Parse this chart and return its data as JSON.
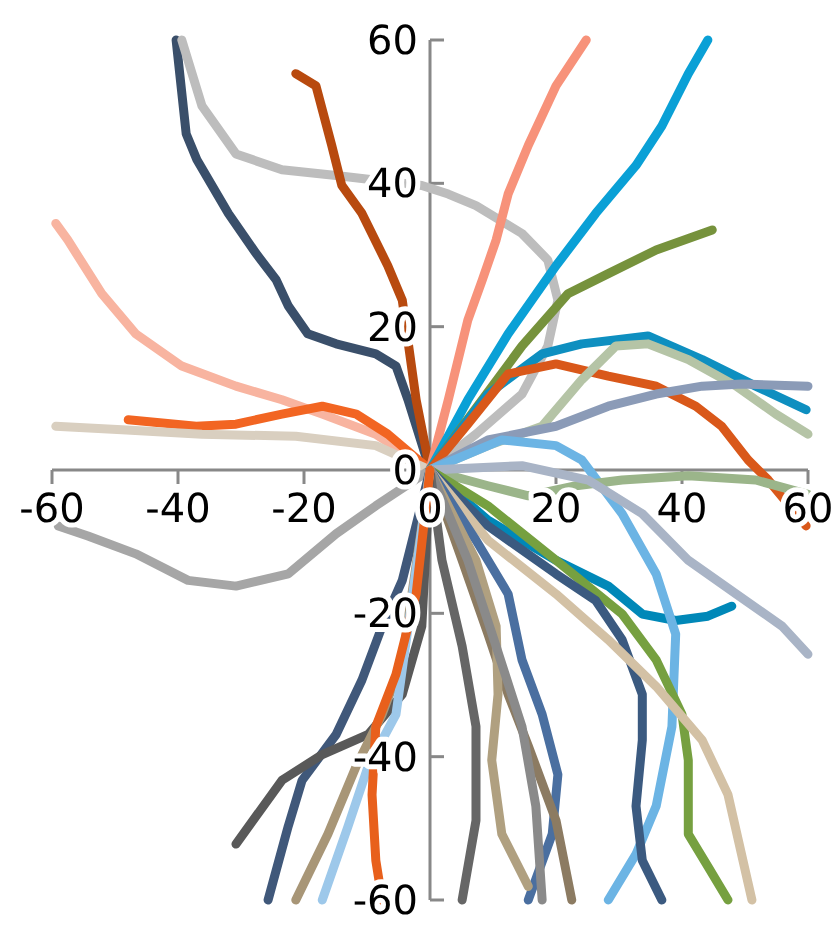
{
  "chart_data": {
    "type": "line",
    "xlim": [
      -60,
      60
    ],
    "ylim": [
      -60,
      60
    ],
    "xticks": [
      -60,
      -40,
      -20,
      0,
      20,
      40,
      60
    ],
    "yticks": [
      -60,
      -40,
      -20,
      0,
      20,
      40,
      60
    ],
    "grid": false,
    "marker": "none",
    "line_style": "solid",
    "series": [
      {
        "color": "#3a4f6a",
        "x": [
          0,
          -3.5,
          -5.4,
          -8.6,
          -14.9,
          -19.4,
          -22.5,
          -24.4,
          -27.6,
          -32,
          -37,
          -38.7,
          -40.3
        ],
        "values": [
          0,
          9.8,
          14.5,
          16.2,
          17.6,
          19,
          22.9,
          26.5,
          30.2,
          35.8,
          43.3,
          46.9,
          60
        ]
      },
      {
        "color": "#bdbdbd",
        "x": [
          0,
          7.3,
          14.6,
          18.7,
          20.3,
          18.7,
          14.6,
          7.3,
          2.9,
          -1.3,
          -14.9,
          -23.5,
          -30.8,
          -36.2,
          -39.4
        ],
        "values": [
          0,
          5,
          10.6,
          17.3,
          23.7,
          29.3,
          33,
          36.9,
          38.5,
          39.7,
          41.1,
          41.9,
          44.1,
          50.8,
          60
        ]
      },
      {
        "color": "#b84a0f",
        "x": [
          0,
          -2.2,
          -4.4,
          -6.7,
          -10.8,
          -14,
          -15.6,
          -18.1,
          -21.3
        ],
        "values": [
          0,
          9.8,
          23.7,
          28.5,
          35.8,
          39.7,
          45.3,
          53.6,
          55.3
        ]
      },
      {
        "color": "#f8b4a0",
        "x": [
          0,
          -8.6,
          -17.1,
          -23.5,
          -30.8,
          -39.4,
          -46.7,
          -52.1,
          -57.5,
          -59.4
        ],
        "values": [
          0,
          5,
          7.8,
          9.8,
          11.7,
          14.5,
          19,
          24.6,
          32.1,
          34.4
        ]
      },
      {
        "color": "#f26522",
        "x": [
          0,
          -6.7,
          -11.7,
          -17.1,
          -23.5,
          -30.8,
          -37.1,
          -47.9
        ],
        "values": [
          0,
          5,
          7.8,
          8.9,
          7.8,
          6.4,
          6.1,
          7
        ]
      },
      {
        "color": "#d9cfc0",
        "x": [
          0,
          -8.6,
          -21.3,
          -36.2,
          -48.9,
          -59.4
        ],
        "values": [
          0,
          3.4,
          4.7,
          5,
          5.6,
          6.1
        ]
      },
      {
        "color": "#a6a6a6",
        "x": [
          0,
          -8.6,
          -14.9,
          -22.5,
          -30.8,
          -38.4,
          -46.7,
          -54.3,
          -59
        ],
        "values": [
          0,
          -5,
          -8.9,
          -14.5,
          -16.2,
          -15.4,
          -11.7,
          -9.2,
          -7.8
        ]
      },
      {
        "color": "#f7927a",
        "x": [
          0,
          2.9,
          6,
          8.3,
          10.5,
          12.4,
          15.6,
          20,
          24.8
        ],
        "values": [
          0,
          9.8,
          20.9,
          26.5,
          32.1,
          38.5,
          45.3,
          53.6,
          60
        ]
      },
      {
        "color": "#0aa0d6",
        "x": [
          0,
          6,
          12.4,
          20,
          26.3,
          32.7,
          36.8,
          41,
          44.1
        ],
        "values": [
          0,
          9.8,
          19,
          28.5,
          35.8,
          42.5,
          48,
          55.3,
          60
        ]
      },
      {
        "color": "#76923c",
        "x": [
          0,
          8.3,
          14.6,
          21.9,
          28.3,
          35.9,
          44.8
        ],
        "values": [
          0,
          9.8,
          17.3,
          24.6,
          27.4,
          30.7,
          33.5
        ]
      },
      {
        "color": "#0e8fc0",
        "x": [
          0,
          9.2,
          17.8,
          24.1,
          34.6,
          43.2,
          51.7,
          59.7
        ],
        "values": [
          0,
          10.6,
          16.2,
          17.6,
          18.7,
          15.4,
          11.7,
          8.4
        ]
      },
      {
        "color": "#0088b8",
        "x": [
          0,
          9.2,
          20,
          28.3,
          33.7,
          39,
          44.1,
          47.9
        ],
        "values": [
          0,
          -7,
          -12.6,
          -16.2,
          -20.1,
          -21,
          -20.4,
          -19
        ]
      },
      {
        "color": "#d9581a",
        "x": [
          0,
          6,
          12.4,
          20,
          28.3,
          35.9,
          42.2,
          46.3,
          50.5,
          53.7,
          59.7
        ],
        "values": [
          0,
          6.4,
          13.4,
          14.8,
          13.1,
          11.7,
          8.9,
          6.1,
          1.4,
          -1.4,
          -7.8
        ]
      },
      {
        "color": "#b5c4a6",
        "x": [
          0,
          9.2,
          17.8,
          24.1,
          29.5,
          34.6,
          41,
          48.6,
          54.9,
          60
        ],
        "values": [
          0,
          3.4,
          6.1,
          12.6,
          17.3,
          17.6,
          15.4,
          11.7,
          7.8,
          5
        ]
      },
      {
        "color": "#8b9bb7",
        "x": [
          0,
          9.2,
          20,
          28.3,
          35.9,
          43.2,
          49.5,
          60
        ],
        "values": [
          0,
          4.2,
          6.1,
          8.9,
          10.6,
          11.7,
          12,
          11.7
        ]
      },
      {
        "color": "#6cb4e4",
        "x": [
          0,
          11.4,
          20,
          24.1,
          30.5,
          35.9,
          39,
          38.4,
          35.9,
          32.7,
          28.3
        ],
        "values": [
          0,
          4.2,
          3.4,
          1.4,
          -6.1,
          -14.5,
          -22.9,
          -35.8,
          -46.9,
          -53.6,
          -60
        ]
      },
      {
        "color": "#9bb58a",
        "x": [
          0,
          9.2,
          15.6,
          23.2,
          30.5,
          41,
          51.7,
          60
        ],
        "values": [
          0,
          -2.2,
          -3.6,
          -2.2,
          -1.4,
          -0.8,
          -1.4,
          -3.4
        ]
      },
      {
        "color": "#a9b4c6",
        "x": [
          0,
          14.6,
          25.1,
          33.7,
          41,
          48.6,
          55.9,
          60
        ],
        "values": [
          0,
          0.6,
          -1.4,
          -6.1,
          -12.6,
          -17.3,
          -21.8,
          -25.7
        ]
      },
      {
        "color": "#76a040",
        "x": [
          0,
          9.2,
          20,
          30.5,
          35.9,
          40,
          41,
          41,
          44.1,
          47.3
        ],
        "values": [
          0,
          -5,
          -12.6,
          -20.1,
          -26.5,
          -34.1,
          -40.5,
          -50.8,
          -55.3,
          -60
        ]
      },
      {
        "color": "#3b5a80",
        "x": [
          0,
          9.2,
          20,
          26.3,
          30.5,
          33.7,
          33.7,
          32.7,
          33.7,
          36.8
        ],
        "values": [
          0,
          -7.8,
          -14.5,
          -18.2,
          -23.7,
          -31.3,
          -37.7,
          -46.9,
          -54.5,
          -60
        ]
      },
      {
        "color": "#d3c1a5",
        "x": [
          0,
          9.2,
          20,
          28.3,
          35.9,
          43.2,
          47.3,
          51.1
        ],
        "values": [
          0,
          -9.8,
          -17.3,
          -23.7,
          -30.2,
          -37.7,
          -45.3,
          -60
        ]
      },
      {
        "color": "#4a6fa0",
        "x": [
          0,
          7.3,
          12.4,
          14.6,
          17.8,
          20.3,
          19.4,
          15.6
        ],
        "values": [
          0,
          -9.8,
          -17.3,
          -26.5,
          -34.1,
          -42.5,
          -50.8,
          -60
        ]
      },
      {
        "color": "#8c7b62",
        "x": [
          0,
          5.1,
          9.2,
          12.4,
          15.6,
          20,
          22.5
        ],
        "values": [
          0,
          -12.6,
          -22.9,
          -31.3,
          -38.5,
          -48.9,
          -60
        ]
      },
      {
        "color": "#b0a080",
        "x": [
          0,
          7.3,
          10.5,
          10.8,
          9.8,
          11.4,
          15.6
        ],
        "values": [
          0,
          -12.6,
          -21.8,
          -31.3,
          -40.5,
          -50.8,
          -58.1
        ]
      },
      {
        "color": "#8a8a8a",
        "x": [
          0,
          6,
          10.5,
          14.6,
          16.8,
          17.8
        ],
        "values": [
          0,
          -12.6,
          -24.6,
          -35.8,
          -46.9,
          -60
        ]
      },
      {
        "color": "#666666",
        "x": [
          0,
          1.9,
          5.1,
          7.3,
          7.3,
          5.1
        ],
        "values": [
          0,
          -12.6,
          -24.6,
          -35.8,
          -48.9,
          -60
        ]
      },
      {
        "color": "#40587a",
        "x": [
          0,
          -4.4,
          -7.6,
          -10.8,
          -14.9,
          -20.3,
          -22.5,
          -25.7
        ],
        "values": [
          0,
          -15.4,
          -21.8,
          -29.3,
          -36.9,
          -43.3,
          -49.7,
          -60
        ]
      },
      {
        "color": "#595959",
        "x": [
          0,
          -1.3,
          -4.4,
          -9.8,
          -17.1,
          -23.5,
          -30.8
        ],
        "values": [
          0,
          -21.8,
          -31.3,
          -36.9,
          -39.7,
          -43.3,
          -52.2
        ]
      },
      {
        "color": "#a89677",
        "x": [
          0,
          -4.4,
          -7.6,
          -11.7,
          -16.2,
          -21.3
        ],
        "values": [
          0,
          -26.5,
          -34.1,
          -41.3,
          -50.8,
          -60
        ]
      },
      {
        "color": "#9dc8ea",
        "x": [
          0,
          -5.4,
          -9.8,
          -13,
          -17.1
        ],
        "values": [
          0,
          -34.1,
          -41.3,
          -49.7,
          -60
        ]
      },
      {
        "color": "#e8601c",
        "x": [
          0,
          -2.2,
          -5.4,
          -8.6,
          -9.2,
          -8.6,
          -7.6
        ],
        "values": [
          0,
          -17.3,
          -28.5,
          -35.8,
          -45.3,
          -54.5,
          -60
        ]
      }
    ]
  }
}
